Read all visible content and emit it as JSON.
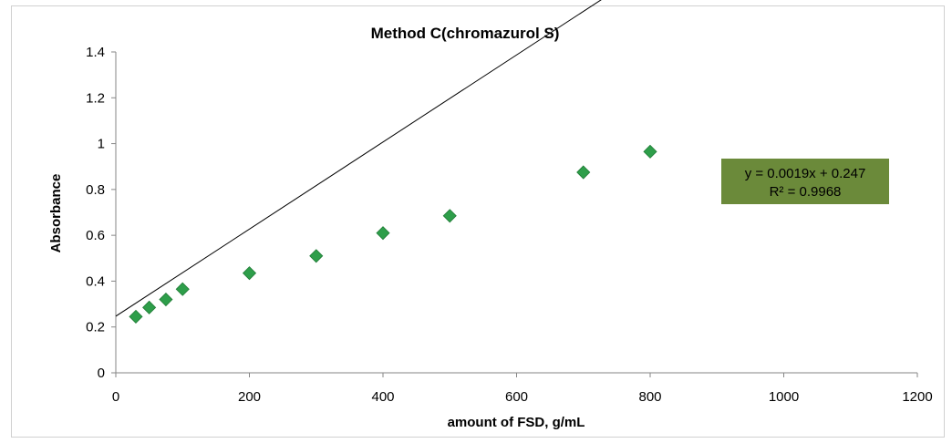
{
  "chart_data": {
    "type": "scatter",
    "title": "Method C(chromazurol S)",
    "xlabel": "amount of FSD, g/mL",
    "ylabel": "Absorbance",
    "xlim": [
      0,
      1200
    ],
    "ylim": [
      0,
      1.4
    ],
    "x_ticks": [
      "0",
      "200",
      "400",
      "600",
      "800",
      "1000",
      "1200"
    ],
    "y_ticks": [
      "0",
      "0.2",
      "0.4",
      "0.6",
      "0.8",
      "1",
      "1.2",
      "1.4"
    ],
    "grid": false,
    "marker": "diamond",
    "marker_color": "#2e9e4a",
    "points": [
      {
        "x": 30,
        "y": 0.245
      },
      {
        "x": 50,
        "y": 0.285
      },
      {
        "x": 75,
        "y": 0.32
      },
      {
        "x": 100,
        "y": 0.365
      },
      {
        "x": 200,
        "y": 0.435
      },
      {
        "x": 300,
        "y": 0.51
      },
      {
        "x": 400,
        "y": 0.61
      },
      {
        "x": 500,
        "y": 0.685
      },
      {
        "x": 700,
        "y": 0.875
      },
      {
        "x": 800,
        "y": 0.965
      }
    ],
    "trendline": {
      "slope": 0.0019,
      "intercept": 0.247,
      "x_range": [
        0,
        1000
      ],
      "equation_label": "y = 0.0019x + 0.247",
      "r2_label": "R² = 0.9968",
      "label_bg_color": "#6b8a3a"
    }
  }
}
